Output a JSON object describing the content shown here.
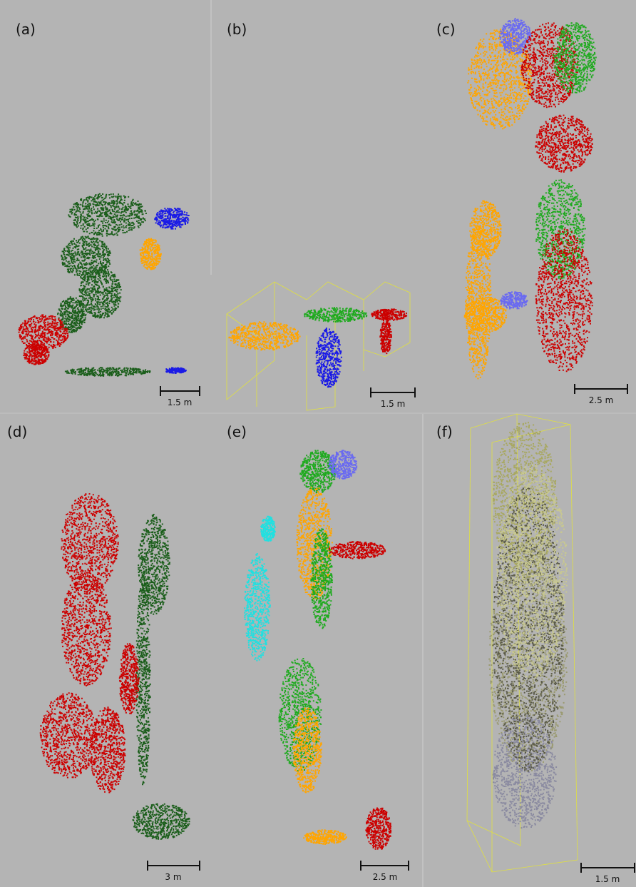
{
  "panels": [
    {
      "label": "(a)",
      "scale": "1.5 m"
    },
    {
      "label": "(b)",
      "scale": "1.5 m"
    },
    {
      "label": "(c)",
      "scale": "2.5 m"
    },
    {
      "label": "(d)",
      "scale": "3 m"
    },
    {
      "label": "(e)",
      "scale": "2.5 m"
    },
    {
      "label": "(f)",
      "scale": "1.5 m"
    }
  ]
}
